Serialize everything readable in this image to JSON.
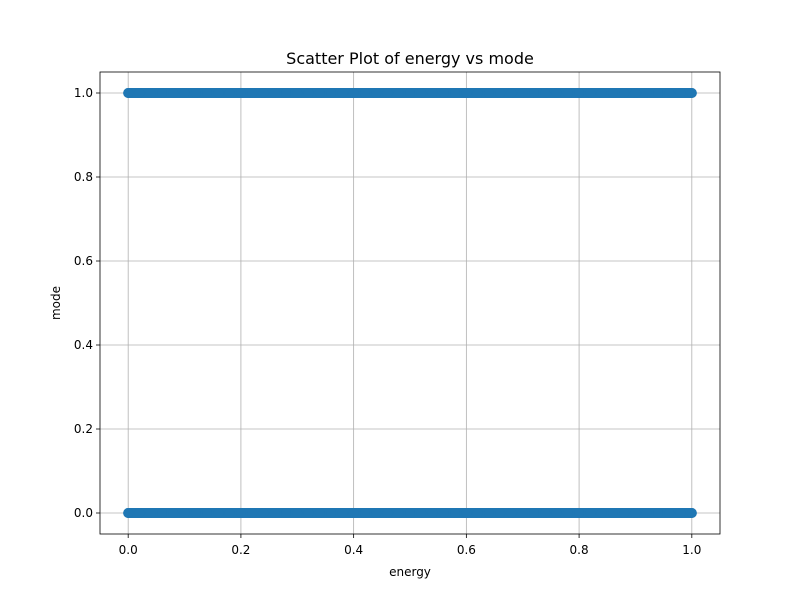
{
  "chart_data": {
    "type": "scatter",
    "title": "Scatter Plot of energy vs mode",
    "xlabel": "energy",
    "ylabel": "mode",
    "xlim": [
      -0.05,
      1.05
    ],
    "ylim": [
      -0.05,
      1.05
    ],
    "xticks": [
      0.0,
      0.2,
      0.4,
      0.6,
      0.8,
      1.0
    ],
    "xtick_labels": [
      "0.0",
      "0.2",
      "0.4",
      "0.6",
      "0.8",
      "1.0"
    ],
    "yticks": [
      0.0,
      0.2,
      0.4,
      0.6,
      0.8,
      1.0
    ],
    "ytick_labels": [
      "0.0",
      "0.2",
      "0.4",
      "0.6",
      "0.8",
      "1.0"
    ],
    "grid": true,
    "marker_color": "#1f77b4",
    "series": [
      {
        "values": [
          [
            0.0,
            0
          ],
          [
            0.02,
            0
          ],
          [
            0.04,
            0
          ],
          [
            0.06,
            0
          ],
          [
            0.08,
            0
          ],
          [
            0.1,
            0
          ],
          [
            0.12,
            0
          ],
          [
            0.14,
            0
          ],
          [
            0.16,
            0
          ],
          [
            0.18,
            0
          ],
          [
            0.2,
            0
          ],
          [
            0.22,
            0
          ],
          [
            0.24,
            0
          ],
          [
            0.26,
            0
          ],
          [
            0.28,
            0
          ],
          [
            0.3,
            0
          ],
          [
            0.32,
            0
          ],
          [
            0.34,
            0
          ],
          [
            0.36,
            0
          ],
          [
            0.38,
            0
          ],
          [
            0.4,
            0
          ],
          [
            0.42,
            0
          ],
          [
            0.44,
            0
          ],
          [
            0.46,
            0
          ],
          [
            0.48,
            0
          ],
          [
            0.5,
            0
          ],
          [
            0.52,
            0
          ],
          [
            0.54,
            0
          ],
          [
            0.56,
            0
          ],
          [
            0.58,
            0
          ],
          [
            0.6,
            0
          ],
          [
            0.62,
            0
          ],
          [
            0.64,
            0
          ],
          [
            0.66,
            0
          ],
          [
            0.68,
            0
          ],
          [
            0.7,
            0
          ],
          [
            0.72,
            0
          ],
          [
            0.74,
            0
          ],
          [
            0.76,
            0
          ],
          [
            0.78,
            0
          ],
          [
            0.8,
            0
          ],
          [
            0.82,
            0
          ],
          [
            0.84,
            0
          ],
          [
            0.86,
            0
          ],
          [
            0.88,
            0
          ],
          [
            0.9,
            0
          ],
          [
            0.92,
            0
          ],
          [
            0.94,
            0
          ],
          [
            0.96,
            0
          ],
          [
            0.98,
            0
          ],
          [
            1.0,
            0
          ],
          [
            0.0,
            1
          ],
          [
            0.02,
            1
          ],
          [
            0.04,
            1
          ],
          [
            0.06,
            1
          ],
          [
            0.08,
            1
          ],
          [
            0.1,
            1
          ],
          [
            0.12,
            1
          ],
          [
            0.14,
            1
          ],
          [
            0.16,
            1
          ],
          [
            0.18,
            1
          ],
          [
            0.2,
            1
          ],
          [
            0.22,
            1
          ],
          [
            0.24,
            1
          ],
          [
            0.26,
            1
          ],
          [
            0.28,
            1
          ],
          [
            0.3,
            1
          ],
          [
            0.32,
            1
          ],
          [
            0.34,
            1
          ],
          [
            0.36,
            1
          ],
          [
            0.38,
            1
          ],
          [
            0.4,
            1
          ],
          [
            0.42,
            1
          ],
          [
            0.44,
            1
          ],
          [
            0.46,
            1
          ],
          [
            0.48,
            1
          ],
          [
            0.5,
            1
          ],
          [
            0.52,
            1
          ],
          [
            0.54,
            1
          ],
          [
            0.56,
            1
          ],
          [
            0.58,
            1
          ],
          [
            0.6,
            1
          ],
          [
            0.62,
            1
          ],
          [
            0.64,
            1
          ],
          [
            0.66,
            1
          ],
          [
            0.68,
            1
          ],
          [
            0.7,
            1
          ],
          [
            0.72,
            1
          ],
          [
            0.74,
            1
          ],
          [
            0.76,
            1
          ],
          [
            0.78,
            1
          ],
          [
            0.8,
            1
          ],
          [
            0.82,
            1
          ],
          [
            0.84,
            1
          ],
          [
            0.86,
            1
          ],
          [
            0.88,
            1
          ],
          [
            0.9,
            1
          ],
          [
            0.92,
            1
          ],
          [
            0.94,
            1
          ],
          [
            0.96,
            1
          ],
          [
            0.98,
            1
          ],
          [
            1.0,
            1
          ]
        ]
      }
    ]
  }
}
